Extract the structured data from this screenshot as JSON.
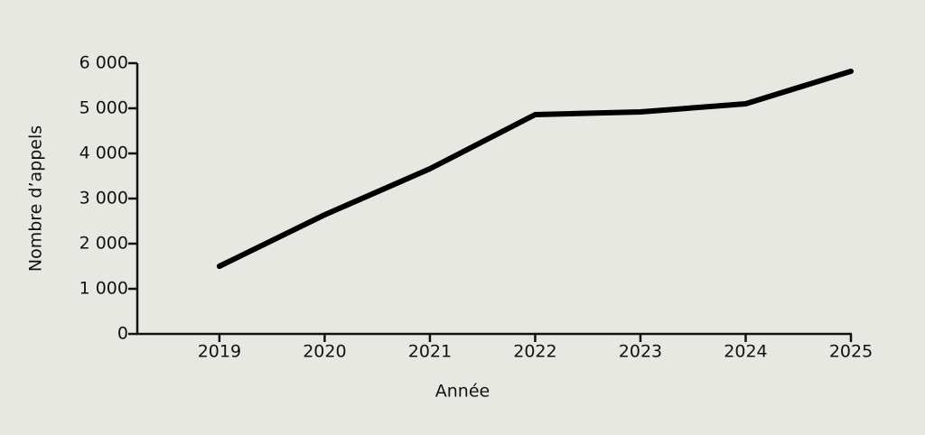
{
  "chart_data": {
    "type": "line",
    "x_label": "Année",
    "y_label": "Nombre d’appels",
    "x": [
      2019,
      2020,
      2021,
      2022,
      2023,
      2024,
      2025
    ],
    "series": [
      {
        "color": "#000000",
        "values": [
          1500,
          2640,
          3660,
          4860,
          4920,
          5100,
          5820
        ]
      }
    ],
    "xlim": [
      2018.22,
      2025
    ],
    "xticks": [
      2019,
      2020,
      2021,
      2022,
      2023,
      2024,
      2025
    ],
    "ylim": [
      0,
      6000
    ],
    "yticks": [
      0,
      {
        "value": 1000,
        "label": "1 000"
      },
      {
        "value": 2000,
        "label": "2 000"
      },
      {
        "value": 3000,
        "label": "3 000"
      },
      {
        "value": 4000,
        "label": "4 000"
      },
      {
        "value": 5000,
        "label": "5 000"
      },
      {
        "value": 6000,
        "label": "6 000"
      }
    ]
  }
}
